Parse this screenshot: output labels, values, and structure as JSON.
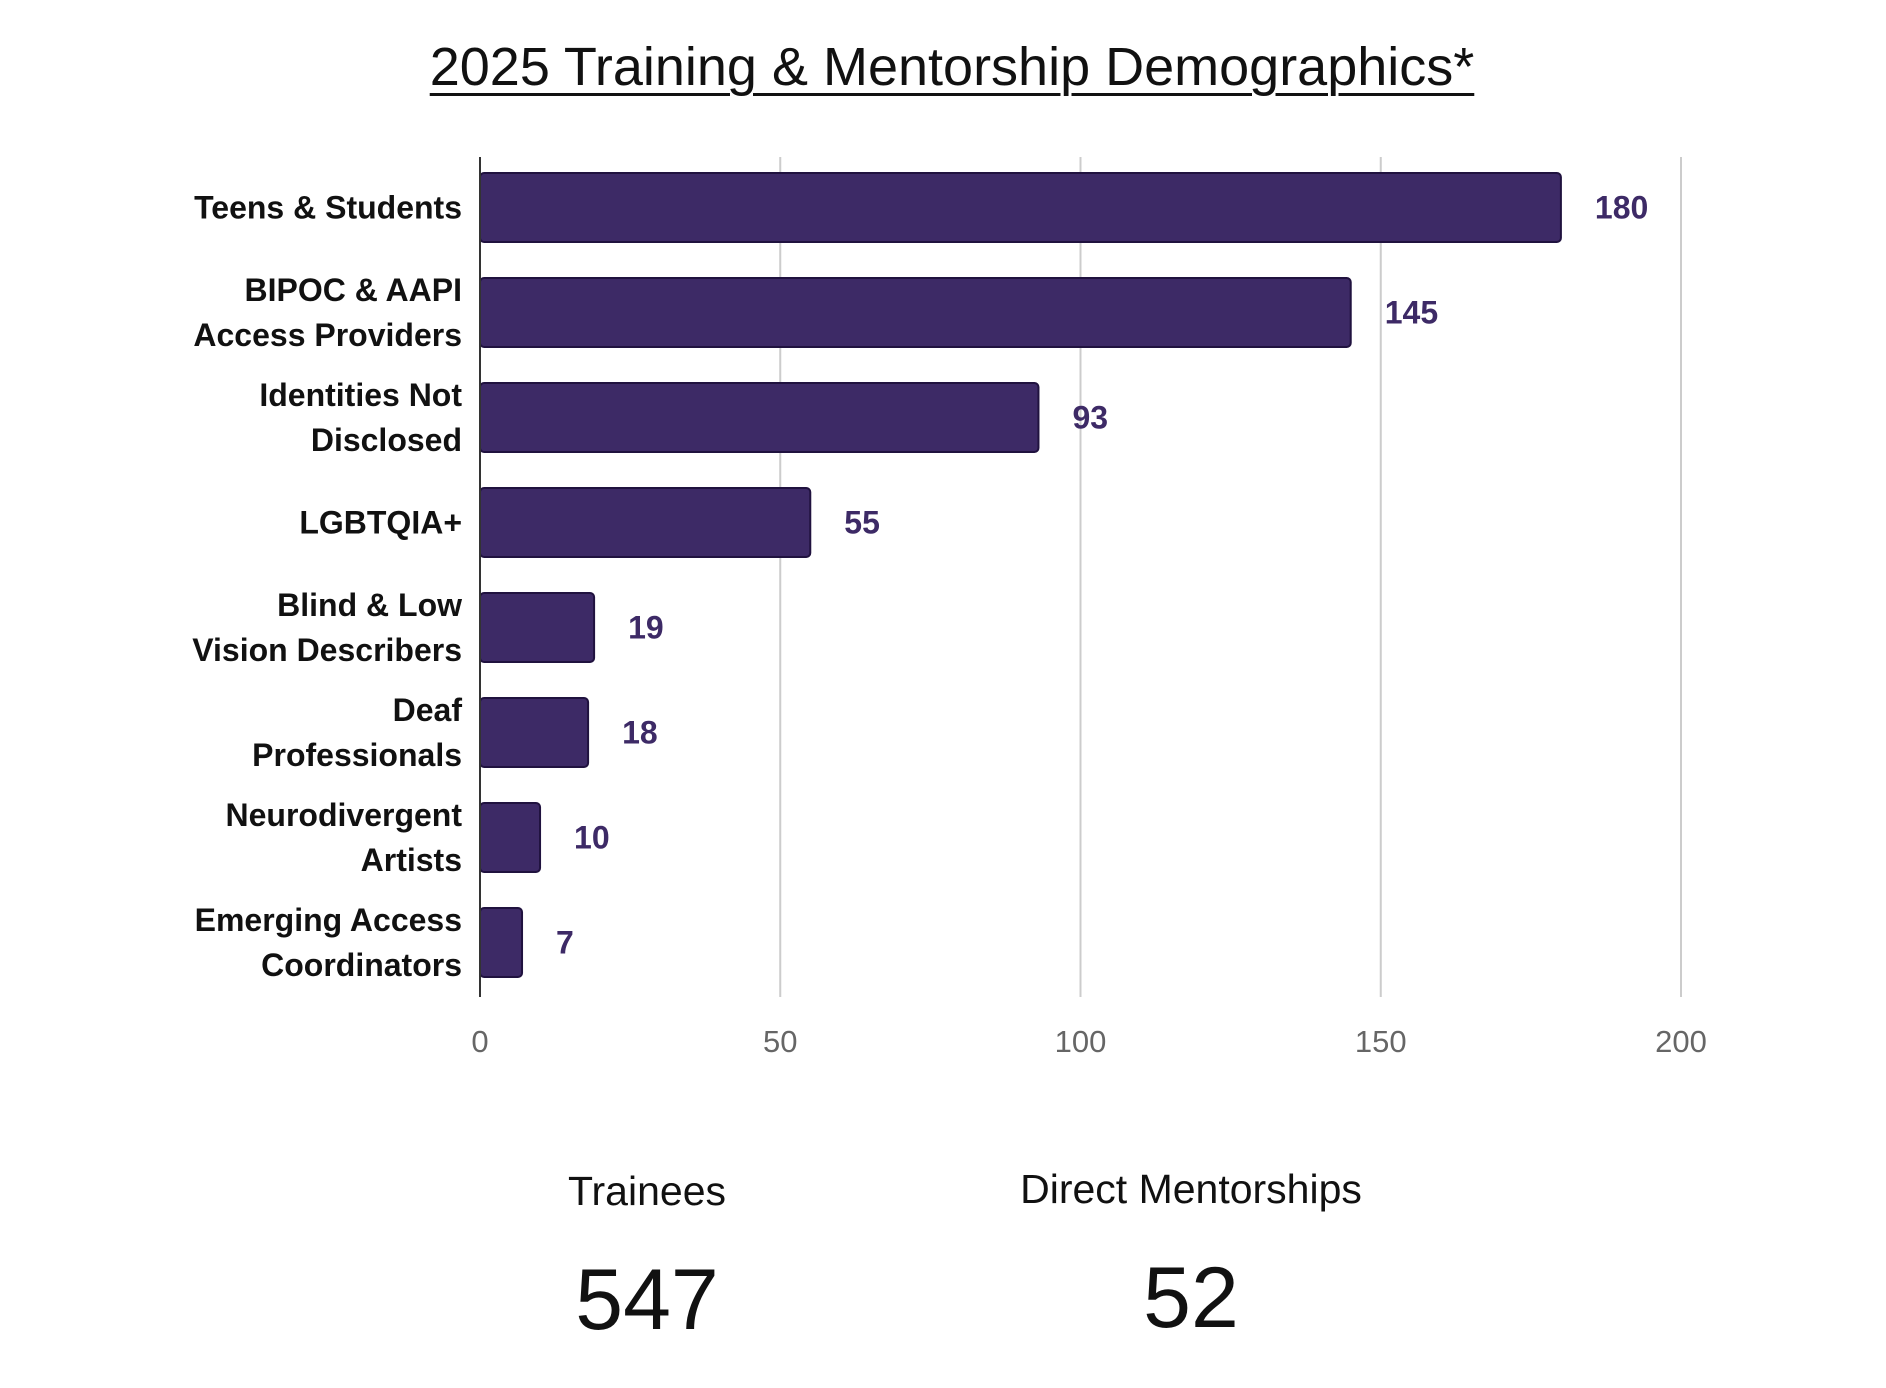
{
  "chart_data": {
    "type": "bar",
    "orientation": "horizontal",
    "title": "2025 Training & Mentorship Demographics*",
    "categories": [
      "Teens & Students",
      "BIPOC & AAPI Access Providers",
      "Identities Not Disclosed",
      "LGBTQIA+",
      "Blind & Low Vision Describers",
      "Deaf Professionals",
      "Neurodivergent Artists",
      "Emerging Access Coordinators"
    ],
    "category_lines": [
      [
        "Teens & Students"
      ],
      [
        "BIPOC & AAPI",
        "Access Providers"
      ],
      [
        "Identities Not",
        "Disclosed"
      ],
      [
        "LGBTQIA+"
      ],
      [
        "Blind & Low",
        "Vision Describers"
      ],
      [
        "Deaf",
        "Professionals"
      ],
      [
        "Neurodivergent",
        "Artists"
      ],
      [
        "Emerging Access",
        "Coordinators"
      ]
    ],
    "values": [
      180,
      145,
      93,
      55,
      19,
      18,
      10,
      7
    ],
    "xlim": [
      0,
      200
    ],
    "xticks": [
      0,
      50,
      100,
      150,
      200
    ],
    "xlabel": "",
    "ylabel": "",
    "grid": true,
    "data_labels": true,
    "bar_color": "#3d2a66",
    "label_color": "#3d2a66"
  },
  "stats": [
    {
      "label": "Trainees",
      "value": "547"
    },
    {
      "label": "Direct Mentorships",
      "value": "52"
    }
  ]
}
